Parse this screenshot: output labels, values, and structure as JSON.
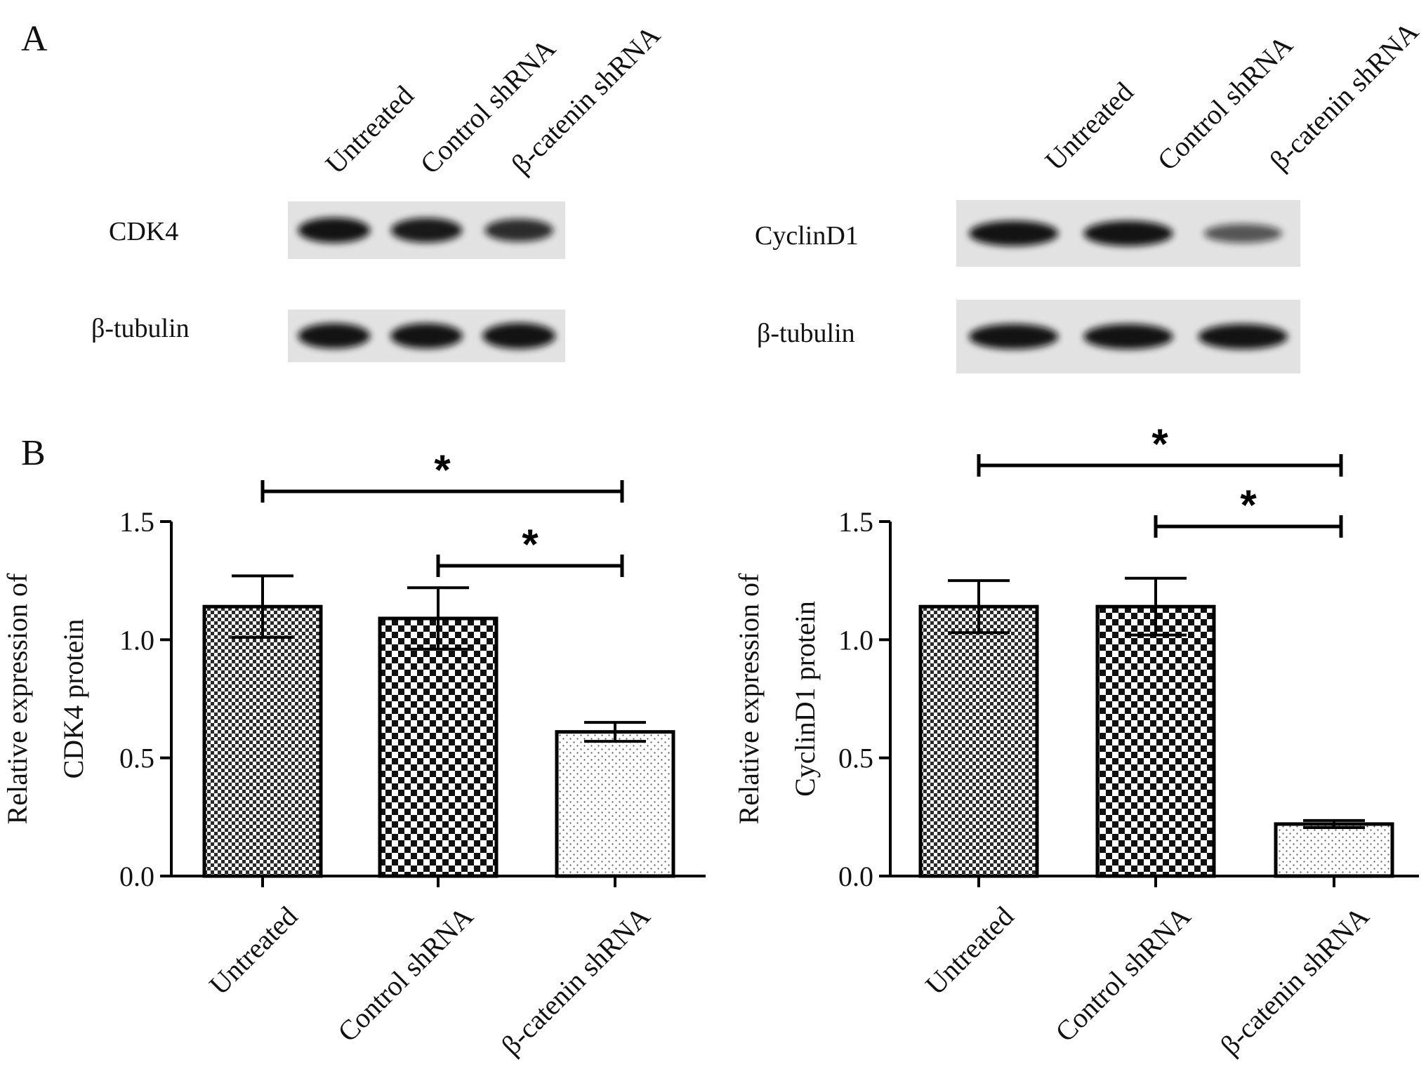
{
  "panels": {
    "a": "A",
    "b": "B"
  },
  "blots": [
    {
      "lanes": [
        "Untreated",
        "Control shRNA",
        "β-catenin shRNA"
      ],
      "rows": [
        {
          "label": "CDK4",
          "intensity": [
            1.0,
            0.95,
            0.8
          ]
        },
        {
          "label": "β-tubulin",
          "intensity": [
            1.0,
            1.0,
            1.05
          ]
        }
      ]
    },
    {
      "lanes": [
        "Untreated",
        "Control shRNA",
        "β-catenin shRNA"
      ],
      "rows": [
        {
          "label": "CyclinD1",
          "intensity": [
            1.0,
            1.0,
            0.5
          ]
        },
        {
          "label": "β-tubulin",
          "intensity": [
            1.0,
            1.0,
            1.0
          ]
        }
      ]
    }
  ],
  "chart_data": [
    {
      "type": "bar",
      "categories": [
        "Untreated",
        "Control shRNA",
        "β-catenin shRNA"
      ],
      "values": [
        1.14,
        1.09,
        0.61
      ],
      "errors": [
        0.13,
        0.13,
        0.04
      ],
      "patterns": [
        "fine-checker",
        "coarse-checker",
        "dots"
      ],
      "ylabel_lines": [
        "Relative expression of",
        "CDK4 protein"
      ],
      "ylim": [
        0,
        1.5
      ],
      "yticks": [
        "0.0",
        "0.5",
        "1.0",
        "1.5"
      ],
      "significance": [
        {
          "from": 0,
          "to": 2,
          "label": "*"
        },
        {
          "from": 1,
          "to": 2,
          "label": "*"
        }
      ]
    },
    {
      "type": "bar",
      "categories": [
        "Untreated",
        "Control shRNA",
        "β-catenin shRNA"
      ],
      "values": [
        1.14,
        1.14,
        0.22
      ],
      "errors": [
        0.11,
        0.12,
        0.015
      ],
      "patterns": [
        "fine-checker",
        "coarse-checker",
        "dots"
      ],
      "ylabel_lines": [
        "Relative expression of",
        "CyclinD1 protein"
      ],
      "ylim": [
        0,
        1.5
      ],
      "yticks": [
        "0.0",
        "0.5",
        "1.0",
        "1.5"
      ],
      "significance": [
        {
          "from": 0,
          "to": 2,
          "label": "*"
        },
        {
          "from": 1,
          "to": 2,
          "label": "*"
        }
      ]
    }
  ]
}
